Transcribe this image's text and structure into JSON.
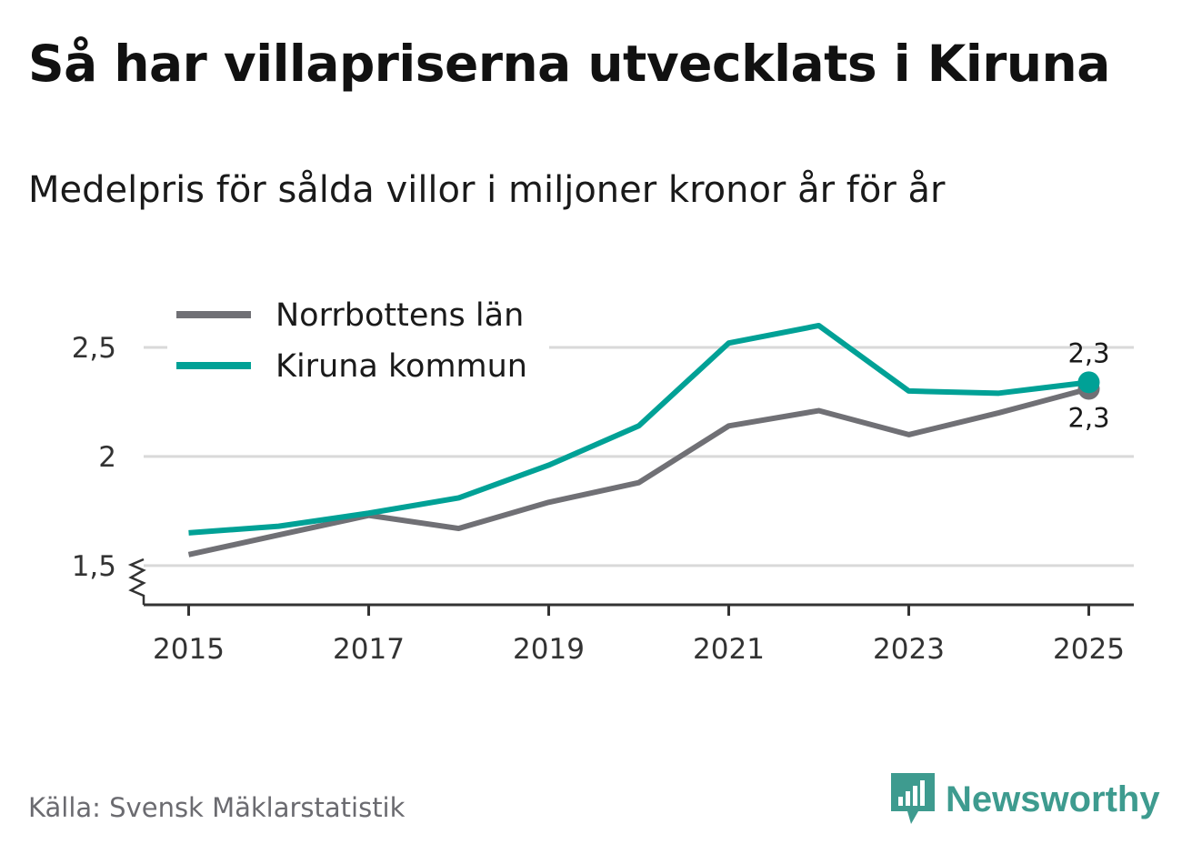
{
  "title": "Så har villapriserna utvecklats i Kiruna",
  "subtitle": "Medelpris för sålda villor i miljoner kronor år för år",
  "source": "Källa: Svensk Mäklarstatistik",
  "brand": "Newsworthy",
  "colors": {
    "norrbotten": "#707075",
    "kiruna": "#00a196",
    "grid": "#d9d9d9",
    "axis": "#333333",
    "brand": "#3e9b8f"
  },
  "chart_data": {
    "type": "line",
    "x": [
      2015,
      2016,
      2017,
      2018,
      2019,
      2020,
      2021,
      2022,
      2023,
      2024,
      2025
    ],
    "xticks": [
      2015,
      2017,
      2019,
      2021,
      2023,
      2025
    ],
    "xtick_labels": [
      "2015",
      "2017",
      "2019",
      "2021",
      "2023",
      "2025"
    ],
    "yticks": [
      1.5,
      2,
      2.5
    ],
    "ytick_labels": [
      "1,5",
      "2",
      "2,5"
    ],
    "ylim": [
      1.32,
      2.8
    ],
    "xlim": [
      2014.5,
      2025.5
    ],
    "legend_position": "top-left",
    "series": [
      {
        "name": "Norrbottens län",
        "key": "norrbotten",
        "values": [
          1.55,
          1.64,
          1.73,
          1.67,
          1.79,
          1.88,
          2.14,
          2.21,
          2.1,
          2.2,
          2.31
        ],
        "end_label": "2,3"
      },
      {
        "name": "Kiruna kommun",
        "key": "kiruna",
        "values": [
          1.65,
          1.68,
          1.74,
          1.81,
          1.96,
          2.14,
          2.52,
          2.6,
          2.3,
          2.29,
          2.34
        ],
        "end_label": "2,3"
      }
    ]
  }
}
